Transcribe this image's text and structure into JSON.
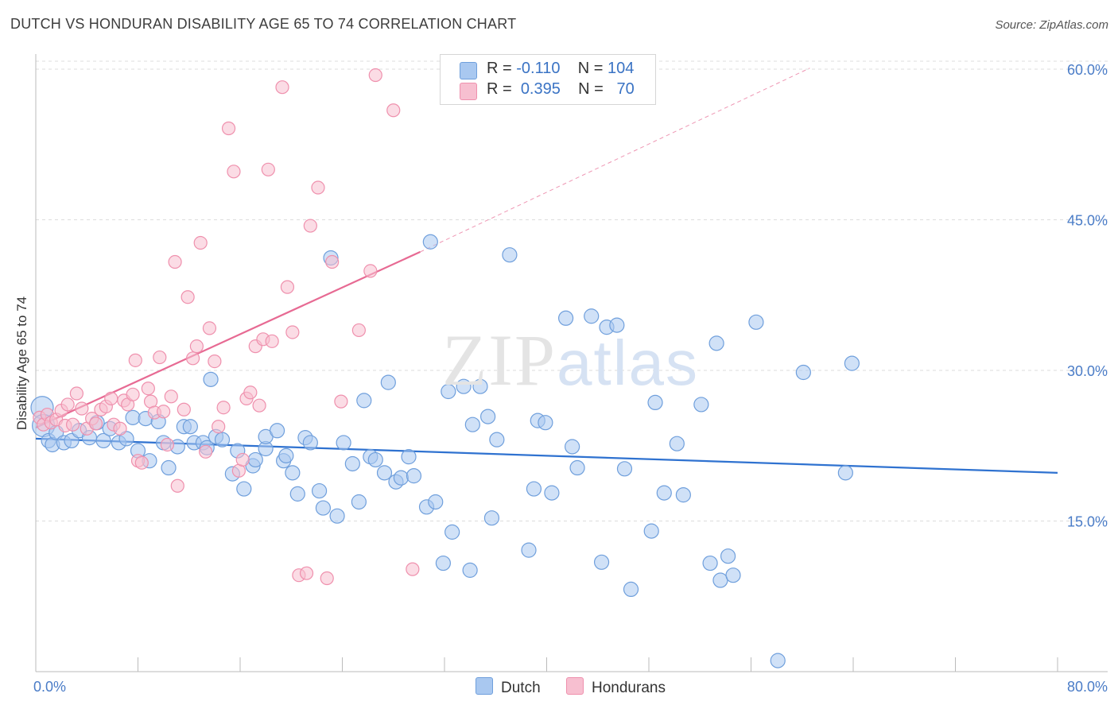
{
  "title": "DUTCH VS HONDURAN DISABILITY AGE 65 TO 74 CORRELATION CHART",
  "source": "Source: ZipAtlas.com",
  "watermark": {
    "zip": "ZIP",
    "atlas": "atlas"
  },
  "legend": {
    "dutch": {
      "r_label": "R =",
      "r_value": "-0.110",
      "n_label": "N =",
      "n_value": "104"
    },
    "hondurans": {
      "r_label": "R =",
      "r_value": "0.395",
      "n_label": "N =",
      "n_value": "70"
    }
  },
  "colors": {
    "dutch_fill": "#a9c8f0",
    "dutch_stroke": "#6f9fdc",
    "dutch_line": "#2f72d0",
    "hondurans_fill": "#f7bfd0",
    "hondurans_stroke": "#ef90ad",
    "hondurans_line": "#e76a93",
    "grid": "#dcdcdc",
    "tick_label": "#4a7cc7"
  },
  "chart_data": {
    "type": "scatter",
    "title": "DUTCH VS HONDURAN DISABILITY AGE 65 TO 74 CORRELATION CHART",
    "xlabel": "",
    "ylabel": "Disability Age 65 to 74",
    "xlim": [
      0,
      80
    ],
    "ylim": [
      0,
      61.5
    ],
    "x_tick_labels": [
      "0.0%",
      "80.0%"
    ],
    "y_ticks": [
      15,
      30,
      45,
      60
    ],
    "y_tick_labels": [
      "15.0%",
      "30.0%",
      "45.0%",
      "60.0%"
    ],
    "legend_position": "bottom-center",
    "grid": true,
    "series": [
      {
        "name": "Dutch",
        "color": "#a9c8f0",
        "trend": {
          "x": [
            0,
            80
          ],
          "y": [
            23.2,
            19.8
          ]
        },
        "points": [
          [
            0.5,
            26.3
          ],
          [
            0.6,
            24.5
          ],
          [
            1.0,
            23.0
          ],
          [
            1.3,
            22.6
          ],
          [
            1.6,
            23.8
          ],
          [
            2.2,
            22.8
          ],
          [
            2.8,
            23.0
          ],
          [
            3.4,
            24.0
          ],
          [
            4.2,
            23.3
          ],
          [
            4.8,
            24.8
          ],
          [
            5.3,
            23.0
          ],
          [
            5.8,
            24.2
          ],
          [
            6.5,
            22.8
          ],
          [
            7.1,
            23.2
          ],
          [
            7.6,
            25.3
          ],
          [
            8.0,
            22.0
          ],
          [
            8.6,
            25.2
          ],
          [
            8.9,
            21.0
          ],
          [
            9.6,
            24.9
          ],
          [
            10.0,
            22.8
          ],
          [
            10.4,
            20.3
          ],
          [
            11.1,
            22.4
          ],
          [
            11.6,
            24.4
          ],
          [
            12.1,
            24.4
          ],
          [
            12.4,
            22.8
          ],
          [
            13.1,
            22.8
          ],
          [
            13.4,
            22.3
          ],
          [
            13.7,
            29.1
          ],
          [
            14.1,
            23.4
          ],
          [
            14.6,
            23.1
          ],
          [
            15.4,
            19.7
          ],
          [
            15.8,
            22.0
          ],
          [
            16.3,
            18.2
          ],
          [
            17.0,
            20.5
          ],
          [
            17.2,
            21.1
          ],
          [
            18.0,
            22.2
          ],
          [
            18.0,
            23.4
          ],
          [
            18.9,
            24.0
          ],
          [
            19.4,
            21.0
          ],
          [
            19.6,
            21.5
          ],
          [
            20.1,
            19.8
          ],
          [
            20.5,
            17.7
          ],
          [
            21.1,
            23.3
          ],
          [
            21.5,
            22.8
          ],
          [
            22.2,
            18.0
          ],
          [
            22.5,
            16.3
          ],
          [
            23.1,
            41.2
          ],
          [
            23.6,
            15.5
          ],
          [
            24.1,
            22.8
          ],
          [
            24.8,
            20.7
          ],
          [
            25.3,
            16.9
          ],
          [
            25.7,
            27.0
          ],
          [
            26.2,
            21.4
          ],
          [
            26.6,
            21.1
          ],
          [
            27.3,
            19.8
          ],
          [
            27.6,
            28.8
          ],
          [
            28.2,
            18.9
          ],
          [
            28.6,
            19.3
          ],
          [
            29.2,
            21.4
          ],
          [
            29.6,
            19.5
          ],
          [
            30.6,
            16.4
          ],
          [
            30.9,
            42.8
          ],
          [
            31.3,
            16.9
          ],
          [
            31.9,
            10.8
          ],
          [
            32.3,
            27.9
          ],
          [
            32.6,
            13.9
          ],
          [
            33.5,
            28.4
          ],
          [
            34.0,
            10.1
          ],
          [
            34.2,
            24.6
          ],
          [
            34.8,
            28.4
          ],
          [
            35.4,
            25.4
          ],
          [
            35.7,
            15.3
          ],
          [
            36.1,
            23.1
          ],
          [
            37.1,
            41.5
          ],
          [
            38.6,
            12.1
          ],
          [
            39.0,
            18.2
          ],
          [
            39.3,
            25.0
          ],
          [
            39.9,
            24.8
          ],
          [
            40.4,
            17.8
          ],
          [
            41.5,
            35.2
          ],
          [
            42.0,
            22.4
          ],
          [
            42.4,
            20.3
          ],
          [
            43.5,
            35.4
          ],
          [
            44.3,
            10.9
          ],
          [
            44.7,
            34.3
          ],
          [
            45.5,
            34.5
          ],
          [
            46.1,
            20.2
          ],
          [
            46.6,
            8.2
          ],
          [
            48.2,
            14.0
          ],
          [
            48.5,
            26.8
          ],
          [
            49.2,
            17.8
          ],
          [
            50.2,
            22.7
          ],
          [
            50.7,
            17.6
          ],
          [
            52.1,
            26.6
          ],
          [
            52.8,
            10.8
          ],
          [
            53.3,
            32.7
          ],
          [
            53.6,
            9.1
          ],
          [
            54.2,
            11.5
          ],
          [
            54.6,
            9.6
          ],
          [
            56.4,
            34.8
          ],
          [
            58.1,
            1.1
          ],
          [
            60.1,
            29.8
          ],
          [
            63.4,
            19.8
          ],
          [
            63.9,
            30.7
          ]
        ]
      },
      {
        "name": "Hondurans",
        "color": "#f7bfd0",
        "trend": {
          "x": [
            0,
            30.1
          ],
          "y": [
            24.3,
            41.8
          ]
        },
        "trend_extension": {
          "x": [
            30.1,
            60.6
          ],
          "y": [
            41.8,
            60.1
          ]
        },
        "points": [
          [
            0.3,
            25.3
          ],
          [
            0.6,
            24.6
          ],
          [
            0.9,
            25.6
          ],
          [
            1.2,
            24.8
          ],
          [
            1.6,
            25.1
          ],
          [
            2.0,
            26.0
          ],
          [
            2.3,
            24.5
          ],
          [
            2.5,
            26.6
          ],
          [
            2.9,
            24.6
          ],
          [
            3.2,
            27.7
          ],
          [
            3.6,
            26.2
          ],
          [
            4.0,
            24.2
          ],
          [
            4.4,
            25.2
          ],
          [
            4.7,
            24.7
          ],
          [
            5.1,
            26.1
          ],
          [
            5.5,
            26.4
          ],
          [
            5.9,
            27.2
          ],
          [
            6.1,
            24.6
          ],
          [
            6.6,
            24.2
          ],
          [
            6.9,
            27.0
          ],
          [
            7.2,
            26.6
          ],
          [
            7.6,
            27.6
          ],
          [
            7.8,
            31.0
          ],
          [
            8.0,
            21.0
          ],
          [
            8.3,
            20.8
          ],
          [
            8.8,
            28.2
          ],
          [
            9.0,
            26.9
          ],
          [
            9.3,
            25.8
          ],
          [
            9.7,
            31.3
          ],
          [
            10.0,
            25.9
          ],
          [
            10.3,
            22.6
          ],
          [
            10.6,
            27.4
          ],
          [
            10.9,
            40.8
          ],
          [
            11.1,
            18.5
          ],
          [
            11.6,
            26.1
          ],
          [
            11.9,
            37.3
          ],
          [
            12.3,
            31.2
          ],
          [
            12.6,
            32.4
          ],
          [
            12.9,
            42.7
          ],
          [
            13.3,
            21.9
          ],
          [
            13.6,
            34.2
          ],
          [
            14.0,
            30.9
          ],
          [
            14.3,
            24.4
          ],
          [
            14.7,
            26.3
          ],
          [
            15.1,
            54.1
          ],
          [
            15.5,
            49.8
          ],
          [
            15.9,
            20.0
          ],
          [
            16.2,
            21.1
          ],
          [
            16.5,
            27.2
          ],
          [
            16.8,
            27.8
          ],
          [
            17.2,
            32.4
          ],
          [
            17.5,
            26.5
          ],
          [
            17.8,
            33.1
          ],
          [
            18.2,
            50.0
          ],
          [
            18.5,
            32.9
          ],
          [
            19.3,
            58.2
          ],
          [
            19.7,
            38.3
          ],
          [
            20.1,
            33.8
          ],
          [
            20.6,
            9.6
          ],
          [
            21.2,
            9.8
          ],
          [
            21.5,
            44.4
          ],
          [
            22.1,
            48.2
          ],
          [
            22.8,
            9.3
          ],
          [
            23.2,
            40.8
          ],
          [
            23.9,
            26.9
          ],
          [
            25.3,
            34.0
          ],
          [
            26.2,
            39.9
          ],
          [
            26.6,
            59.4
          ],
          [
            28.0,
            55.9
          ],
          [
            29.5,
            10.2
          ]
        ]
      }
    ]
  },
  "bottom_legend": {
    "dutch": "Dutch",
    "hondurans": "Hondurans"
  }
}
